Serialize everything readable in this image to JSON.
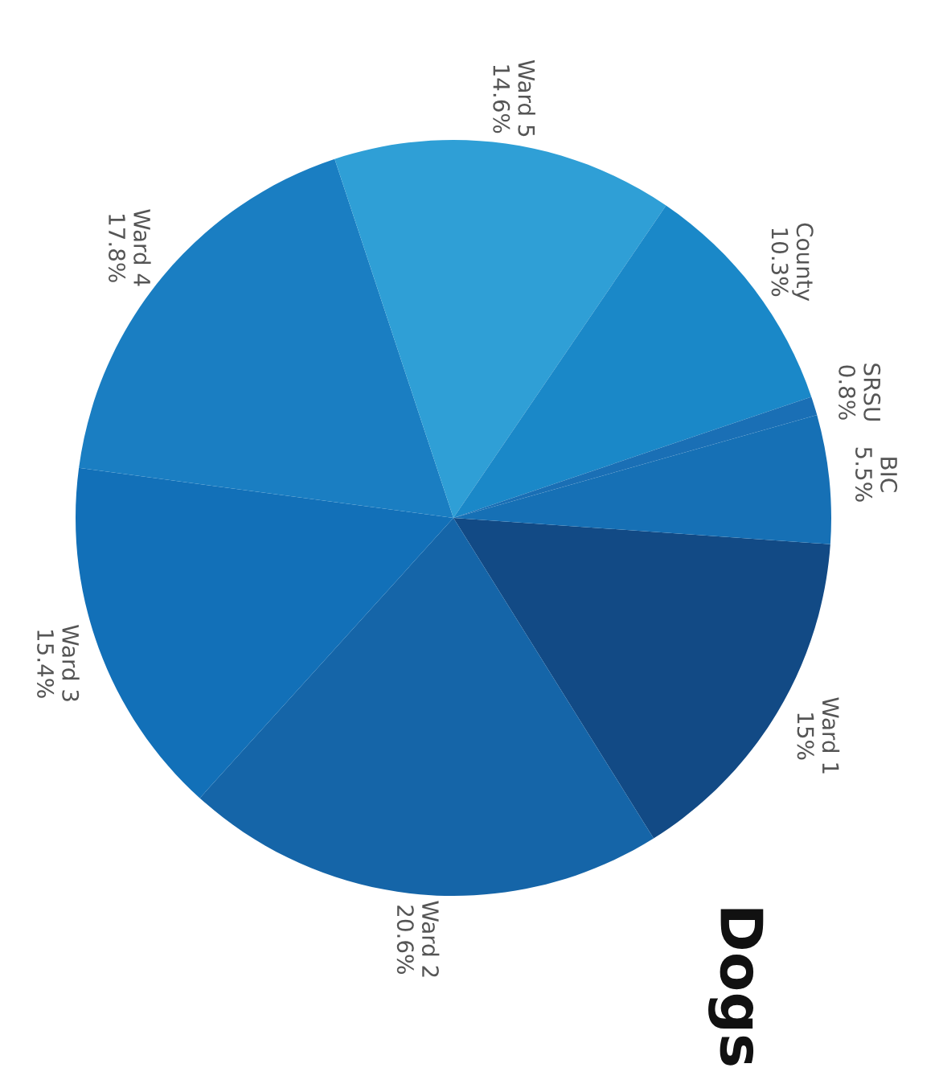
{
  "chart_data": {
    "type": "pie",
    "title": "Dogs",
    "categories": [
      "Ward 1",
      "Ward 2",
      "Ward 3",
      "Ward 4",
      "Ward 5",
      "County",
      "SRSU",
      "BIC"
    ],
    "values": [
      15,
      20.6,
      15.4,
      17.8,
      14.6,
      10.3,
      0.8,
      5.5
    ],
    "colors": [
      "#124a85",
      "#1565a8",
      "#1270b8",
      "#1a7ec2",
      "#2f9fd6",
      "#1a88c8",
      "#1a6fb5",
      "#1670b5"
    ],
    "value_labels": [
      "15%",
      "20.6%",
      "15.4%",
      "17.8%",
      "14.6%",
      "10.3%",
      "0.8%",
      "5.5%"
    ]
  }
}
